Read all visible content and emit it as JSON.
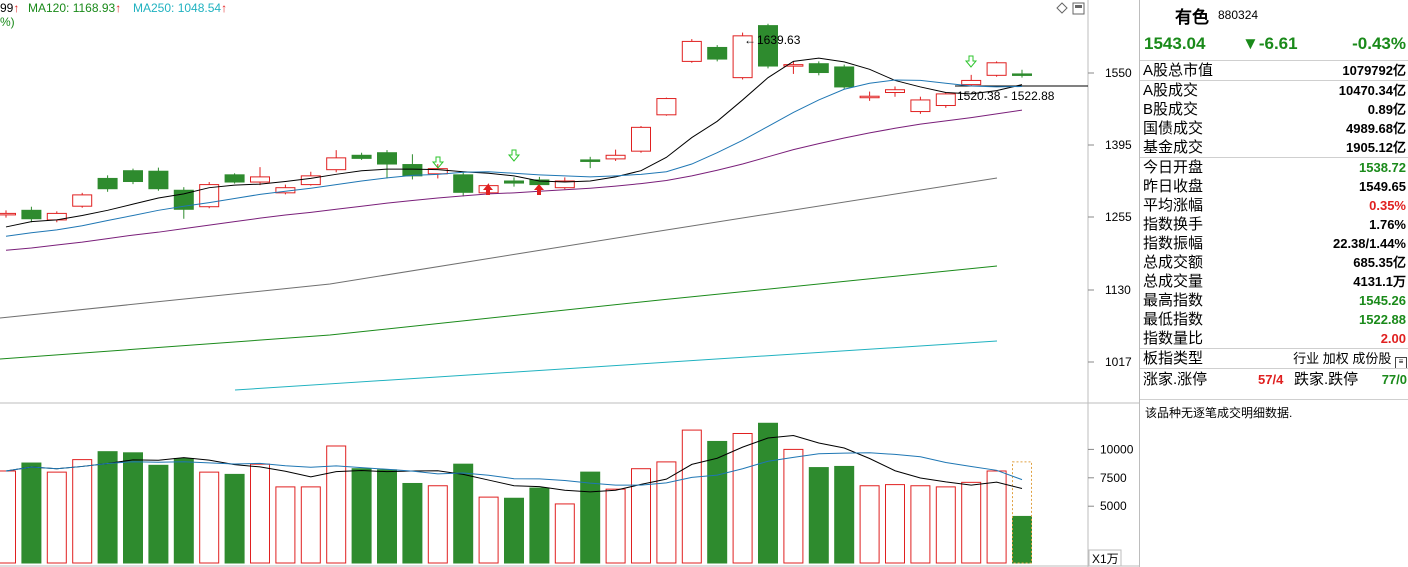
{
  "ma_bar": {
    "ma_partial": "99",
    "ma120_label": "MA120: 1168.93",
    "ma250_label": "MA250: 1048.54",
    "second_line": "%)",
    "arrow": "↑"
  },
  "stock": {
    "name": "有色",
    "code": "880324"
  },
  "quote": {
    "price": "1543.04",
    "change": "▼-6.61",
    "pct": "-0.43%"
  },
  "stats_a": [
    {
      "label": "A股总市值",
      "value": "1079792亿",
      "color": "blk"
    }
  ],
  "stats_b": [
    {
      "label": "A股成交",
      "value": "10470.34亿",
      "color": "blk"
    },
    {
      "label": "B股成交",
      "value": "0.89亿",
      "color": "blk"
    },
    {
      "label": "国债成交",
      "value": "4989.68亿",
      "color": "blk"
    },
    {
      "label": "基金成交",
      "value": "1905.12亿",
      "color": "blk"
    }
  ],
  "stats_c": [
    {
      "label": "今日开盘",
      "value": "1538.72",
      "color": "green"
    },
    {
      "label": "昨日收盘",
      "value": "1549.65",
      "color": "blk"
    },
    {
      "label": "平均涨幅",
      "value": "0.35%",
      "color": "red"
    },
    {
      "label": "指数换手",
      "value": "1.76%",
      "color": "blk"
    },
    {
      "label": "指数振幅",
      "value": "22.38/1.44%",
      "color": "blk"
    },
    {
      "label": "总成交额",
      "value": "685.35亿",
      "color": "blk"
    },
    {
      "label": "总成交量",
      "value": "4131.1万",
      "color": "blk"
    },
    {
      "label": "最高指数",
      "value": "1545.26",
      "color": "green"
    },
    {
      "label": "最低指数",
      "value": "1522.88",
      "color": "green"
    },
    {
      "label": "指数量比",
      "value": "2.00",
      "color": "red"
    }
  ],
  "board_type": {
    "label": "板指类型",
    "values": "行业 加权 成份股",
    "icon": "list-icon"
  },
  "limit_row": {
    "up_label": "涨家.涨停",
    "up_value": "57/4",
    "down_label": "跌家.跌停",
    "down_value": "77/0"
  },
  "note": "该品种无逐笔成交明细数据.",
  "colors": {
    "up": "#e02020",
    "down": "#2e8b2e",
    "ma5": "#000000",
    "ma10": "#1f77b4",
    "ma20": "#7a1f7a",
    "ma60": "#707070",
    "ma120": "#1a8a1a",
    "ma250": "#20b2c0",
    "price_line": "#000000"
  },
  "chart_data": {
    "type": "candlestick",
    "y_ticks": [
      "1550",
      "1395",
      "1255",
      "1130",
      "1017"
    ],
    "vol_ticks": [
      "10000",
      "7500",
      "5000"
    ],
    "vol_unit": "X1万",
    "high_label": "1639.63",
    "range_label": "1520.38 - 1522.88",
    "candles": [
      {
        "o": 1260,
        "c": 1262,
        "h": 1268,
        "l": 1254,
        "v": 8100
      },
      {
        "o": 1268,
        "c": 1252,
        "h": 1275,
        "l": 1246,
        "v": 8800
      },
      {
        "o": 1250,
        "c": 1262,
        "h": 1266,
        "l": 1246,
        "v": 8000
      },
      {
        "o": 1276,
        "c": 1298,
        "h": 1302,
        "l": 1273,
        "v": 9100
      },
      {
        "o": 1330,
        "c": 1310,
        "h": 1336,
        "l": 1304,
        "v": 9800
      },
      {
        "o": 1345,
        "c": 1324,
        "h": 1349,
        "l": 1319,
        "v": 9700
      },
      {
        "o": 1344,
        "c": 1310,
        "h": 1351,
        "l": 1306,
        "v": 8600
      },
      {
        "o": 1307,
        "c": 1270,
        "h": 1313,
        "l": 1252,
        "v": 9200
      },
      {
        "o": 1275,
        "c": 1318,
        "h": 1323,
        "l": 1272,
        "v": 8000
      },
      {
        "o": 1337,
        "c": 1323,
        "h": 1340,
        "l": 1320,
        "v": 7800
      },
      {
        "o": 1323,
        "c": 1333,
        "h": 1352,
        "l": 1317,
        "v": 8700
      },
      {
        "o": 1302,
        "c": 1312,
        "h": 1318,
        "l": 1299,
        "v": 6700
      },
      {
        "o": 1318,
        "c": 1335,
        "h": 1343,
        "l": 1316,
        "v": 6700
      },
      {
        "o": 1347,
        "c": 1370,
        "h": 1385,
        "l": 1342,
        "v": 10300
      },
      {
        "o": 1375,
        "c": 1369,
        "h": 1380,
        "l": 1366,
        "v": 8300
      },
      {
        "o": 1380,
        "c": 1358,
        "h": 1385,
        "l": 1330,
        "v": 8200
      },
      {
        "o": 1357,
        "c": 1335,
        "h": 1377,
        "l": 1328,
        "v": 7000
      },
      {
        "o": 1339,
        "c": 1349,
        "h": 1358,
        "l": 1330,
        "v": 6800
      },
      {
        "o": 1337,
        "c": 1303,
        "h": 1342,
        "l": 1295,
        "v": 8700
      },
      {
        "o": 1302,
        "c": 1316,
        "h": 1320,
        "l": 1301,
        "v": 5800
      },
      {
        "o": 1325,
        "c": 1321,
        "h": 1332,
        "l": 1314,
        "v": 5700
      },
      {
        "o": 1327,
        "c": 1318,
        "h": 1333,
        "l": 1300,
        "v": 6600
      },
      {
        "o": 1312,
        "c": 1325,
        "h": 1332,
        "l": 1309,
        "v": 5200
      },
      {
        "o": 1366,
        "c": 1363,
        "h": 1372,
        "l": 1350,
        "v": 8000
      },
      {
        "o": 1368,
        "c": 1375,
        "h": 1386,
        "l": 1364,
        "v": 6500
      },
      {
        "o": 1383,
        "c": 1433,
        "h": 1436,
        "l": 1380,
        "v": 8300
      },
      {
        "o": 1460,
        "c": 1495,
        "h": 1497,
        "l": 1458,
        "v": 8900
      },
      {
        "o": 1575,
        "c": 1618,
        "h": 1623,
        "l": 1572,
        "v": 11700
      },
      {
        "o": 1605,
        "c": 1580,
        "h": 1610,
        "l": 1575,
        "v": 10700
      },
      {
        "o": 1540,
        "c": 1630,
        "h": 1637,
        "l": 1536,
        "v": 11400
      },
      {
        "o": 1652,
        "c": 1565,
        "h": 1656,
        "l": 1560,
        "v": 12300
      },
      {
        "o": 1565,
        "c": 1568,
        "h": 1575,
        "l": 1548,
        "v": 10000
      },
      {
        "o": 1570,
        "c": 1551,
        "h": 1575,
        "l": 1545,
        "v": 8400
      },
      {
        "o": 1563,
        "c": 1520,
        "h": 1568,
        "l": 1515,
        "v": 8500
      },
      {
        "o": 1498,
        "c": 1500,
        "h": 1510,
        "l": 1490,
        "v": 6800
      },
      {
        "o": 1508,
        "c": 1514,
        "h": 1521,
        "l": 1499,
        "v": 6900
      },
      {
        "o": 1467,
        "c": 1492,
        "h": 1499,
        "l": 1462,
        "v": 6800
      },
      {
        "o": 1480,
        "c": 1505,
        "h": 1508,
        "l": 1475,
        "v": 6700
      },
      {
        "o": 1525,
        "c": 1534,
        "h": 1546,
        "l": 1522,
        "v": 7100
      },
      {
        "o": 1545,
        "c": 1572,
        "h": 1575,
        "l": 1542,
        "v": 8100
      },
      {
        "o": 1548,
        "c": 1546,
        "h": 1557,
        "l": 1540,
        "v": 4100
      }
    ],
    "ma5": [
      1238,
      1247,
      1250,
      1258,
      1268,
      1280,
      1292,
      1300,
      1312,
      1317,
      1319,
      1324,
      1330,
      1338,
      1345,
      1348,
      1348,
      1347,
      1343,
      1340,
      1335,
      1325,
      1323,
      1325,
      1333,
      1345,
      1371,
      1411,
      1446,
      1492,
      1540,
      1575,
      1582,
      1574,
      1558,
      1534,
      1520,
      1508,
      1505,
      1512,
      1525
    ],
    "ma10": [
      1222,
      1228,
      1233,
      1240,
      1249,
      1258,
      1268,
      1276,
      1283,
      1291,
      1299,
      1305,
      1311,
      1318,
      1325,
      1331,
      1336,
      1338,
      1342,
      1343,
      1340,
      1337,
      1335,
      1333,
      1335,
      1338,
      1343,
      1358,
      1380,
      1405,
      1435,
      1465,
      1492,
      1515,
      1528,
      1535,
      1534,
      1528,
      1522,
      1520,
      1521
    ],
    "ma20": [
      1198,
      1202,
      1207,
      1212,
      1218,
      1224,
      1229,
      1235,
      1241,
      1247,
      1253,
      1259,
      1264,
      1270,
      1276,
      1282,
      1287,
      1292,
      1296,
      1300,
      1302,
      1305,
      1308,
      1311,
      1315,
      1320,
      1326,
      1335,
      1346,
      1358,
      1372,
      1386,
      1398,
      1410,
      1421,
      1431,
      1440,
      1447,
      1454,
      1462,
      1470
    ]
  }
}
